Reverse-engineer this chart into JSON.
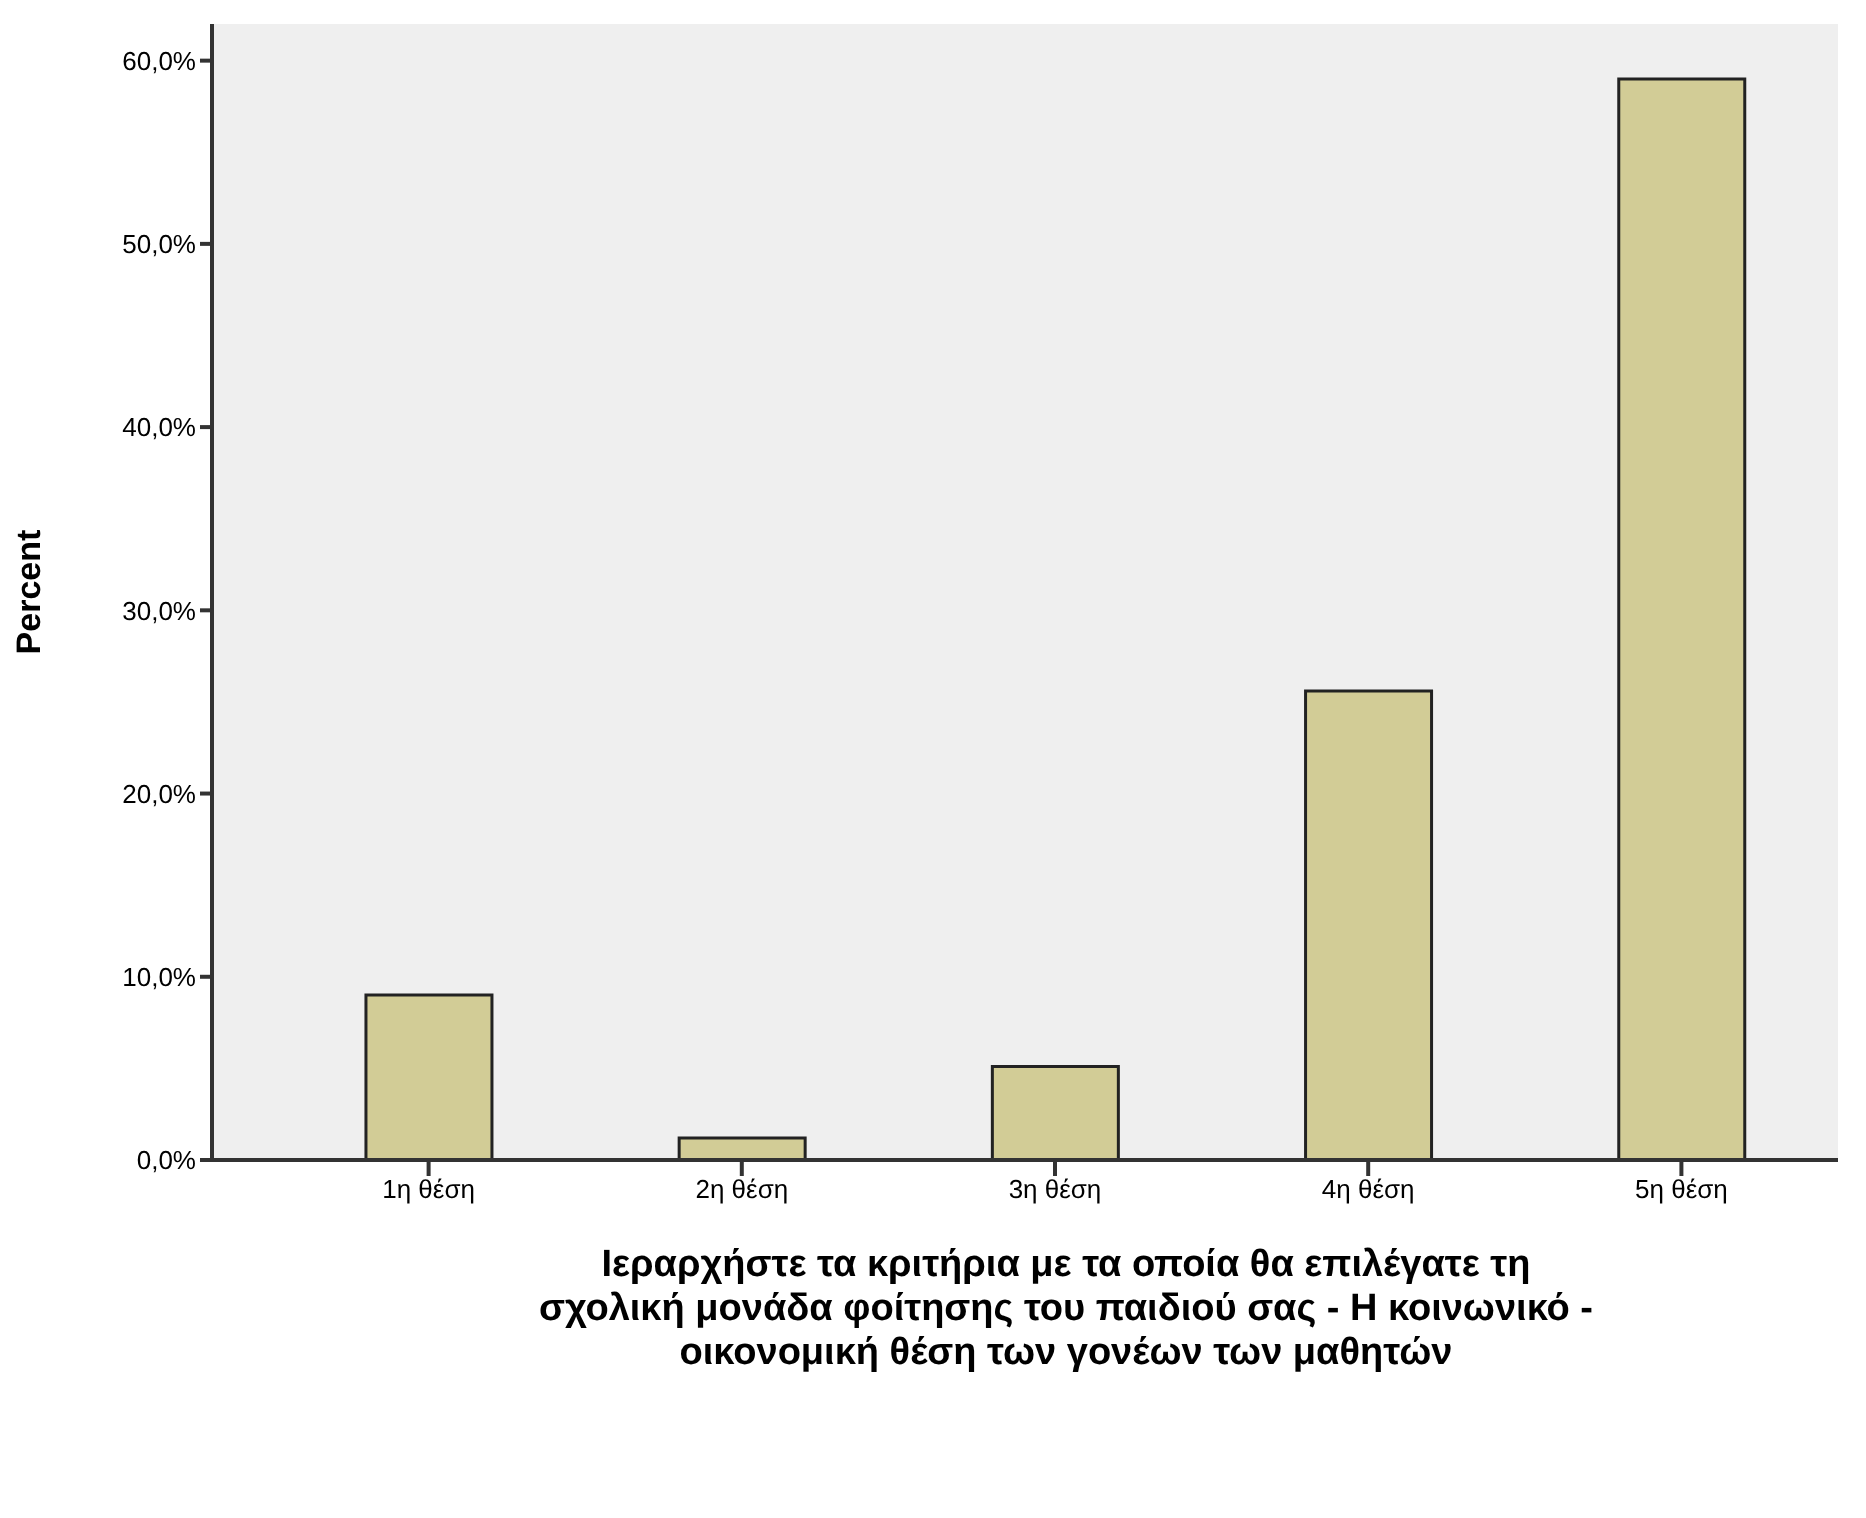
{
  "chart_data": {
    "type": "bar",
    "xlabel": "Ιεραρχήστε τα κριτήρια με τα οποία θα επιλέγατε τη σχολική μονάδα φοίτησης του παιδιού σας - Η κοινωνικό - οικονομική θέση των γονέων των μαθητών",
    "ylabel": "Percent",
    "categories": [
      "1η θέση",
      "2η θέση",
      "3η θέση",
      "4η θέση",
      "5η θέση"
    ],
    "values": [
      9.0,
      1.2,
      5.1,
      25.6,
      59.0
    ],
    "color": "#d2cc96",
    "ylim": [
      0,
      62
    ],
    "yticks": [
      {
        "value": 0,
        "label": "0,0%"
      },
      {
        "value": 10,
        "label": "10,0%"
      },
      {
        "value": 20,
        "label": "20,0%"
      },
      {
        "value": 30,
        "label": "30,0%"
      },
      {
        "value": 40,
        "label": "40,0%"
      },
      {
        "value": 50,
        "label": "50,0%"
      },
      {
        "value": 60,
        "label": "60,0%"
      }
    ],
    "grid": false
  }
}
